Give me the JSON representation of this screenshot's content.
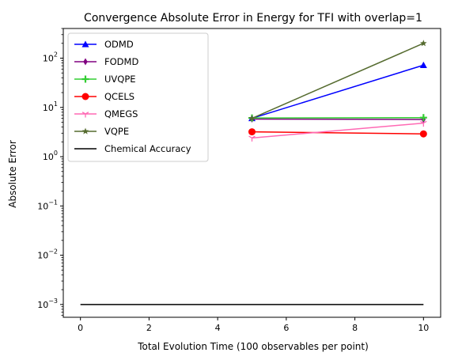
{
  "chart_data": {
    "type": "line",
    "title": "Convergence Absolute Error in Energy for TFI with overlap=1",
    "xlabel": "Total Evolution Time (100 observables per point)",
    "ylabel": "Absolute Error",
    "xlim": [
      -0.5,
      10.5
    ],
    "ylim": [
      0.00055,
      400
    ],
    "yscale": "log",
    "grid": false,
    "legend_placement": "top-left",
    "x_ticks": [
      0,
      2,
      4,
      6,
      8,
      10
    ],
    "x_tick_labels": [
      "0",
      "2",
      "4",
      "6",
      "8",
      "10"
    ],
    "y_ticks": [
      0.001,
      0.01,
      0.1,
      1,
      10,
      100
    ],
    "y_tick_bases": [
      "10",
      "10",
      "10",
      "10",
      "10",
      "10"
    ],
    "y_tick_exponents": [
      "−3",
      "−2",
      "−1",
      "0",
      "1",
      "2"
    ],
    "series": [
      {
        "name": "ODMD",
        "color": "#0000ff",
        "marker": "triangle",
        "x": [
          5,
          10
        ],
        "y": [
          6.0,
          72
        ]
      },
      {
        "name": "FODMD",
        "color": "#800080",
        "marker": "thin-diamond",
        "x": [
          5,
          10
        ],
        "y": [
          5.8,
          5.7
        ]
      },
      {
        "name": "UVQPE",
        "color": "#32cd32",
        "marker": "plus",
        "x": [
          5,
          10
        ],
        "y": [
          6.1,
          6.2
        ]
      },
      {
        "name": "QCELS",
        "color": "#ff0000",
        "marker": "circle",
        "x": [
          5,
          10
        ],
        "y": [
          3.2,
          2.9
        ]
      },
      {
        "name": "QMEGS",
        "color": "#ff69b4",
        "marker": "tri-down",
        "x": [
          5,
          10
        ],
        "y": [
          2.4,
          4.8
        ]
      },
      {
        "name": "VQPE",
        "color": "#556b2f",
        "marker": "star",
        "x": [
          5,
          10
        ],
        "y": [
          6.0,
          200
        ]
      },
      {
        "name": "Chemical Accuracy",
        "color": "#000000",
        "marker": "none",
        "x": [
          0,
          10
        ],
        "y": [
          0.001,
          0.001
        ]
      }
    ]
  }
}
